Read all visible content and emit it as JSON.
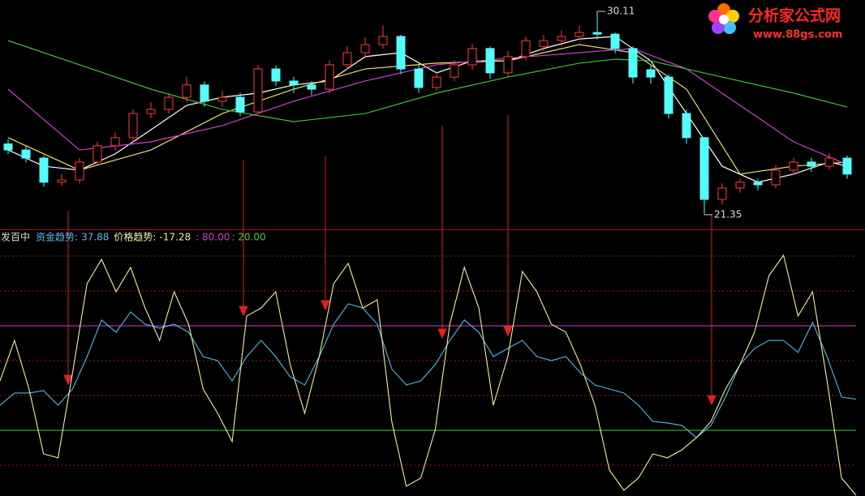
{
  "chart_data": [
    {
      "type": "candlestick",
      "ylim": [
        20.72,
        30.6
      ],
      "up_color": "#ff3c3c",
      "down_color": "#54fcfc",
      "open": [
        24.4,
        24.14,
        23.79,
        22.75,
        22.85,
        23.62,
        24.32,
        24.67,
        25.71,
        25.89,
        26.41,
        26.94,
        26.24,
        26.41,
        25.78,
        27.63,
        27.11,
        26.94,
        26.76,
        27.81,
        28.33,
        28.68,
        29.03,
        27.63,
        26.83,
        27.28,
        27.81,
        28.51,
        27.46,
        28.16,
        28.6,
        28.85,
        29.03,
        29.2,
        29.13,
        28.51,
        27.6,
        27.28,
        25.71,
        24.67,
        22.01,
        22.5,
        22.75,
        22.64,
        23.27,
        23.62,
        23.44,
        23.79
      ],
      "high": [
        24.6,
        24.3,
        23.9,
        23.1,
        23.8,
        24.5,
        24.9,
        25.9,
        26.2,
        26.6,
        27.3,
        27.1,
        26.7,
        26.6,
        27.8,
        27.8,
        27.3,
        27.1,
        28.0,
        28.6,
        29.0,
        29.5,
        29.1,
        27.8,
        27.5,
        28.0,
        28.7,
        28.6,
        28.4,
        29.0,
        29.1,
        29.3,
        29.5,
        30.11,
        29.2,
        28.6,
        27.8,
        27.4,
        25.9,
        24.7,
        22.7,
        22.9,
        22.9,
        23.5,
        23.8,
        23.8,
        24.0,
        23.9
      ],
      "low": [
        23.95,
        23.6,
        22.55,
        22.6,
        22.7,
        23.5,
        24.1,
        24.5,
        25.5,
        25.7,
        26.2,
        26.0,
        26.0,
        25.6,
        25.7,
        26.9,
        26.6,
        26.5,
        26.6,
        27.6,
        28.1,
        28.5,
        27.4,
        26.6,
        26.7,
        27.1,
        27.6,
        27.2,
        27.3,
        28.0,
        28.4,
        28.6,
        28.9,
        28.9,
        28.3,
        27.0,
        27.0,
        25.5,
        24.4,
        21.35,
        21.8,
        22.3,
        22.4,
        22.5,
        23.1,
        23.2,
        23.3,
        22.9
      ],
      "close": [
        24.14,
        23.79,
        22.75,
        22.85,
        23.62,
        24.32,
        24.67,
        25.71,
        25.89,
        26.41,
        26.94,
        26.24,
        26.41,
        25.78,
        27.63,
        27.11,
        26.94,
        26.76,
        27.81,
        28.33,
        28.68,
        29.03,
        27.63,
        26.83,
        27.28,
        27.81,
        28.51,
        27.46,
        28.16,
        28.85,
        28.85,
        29.03,
        29.2,
        29.13,
        28.51,
        27.28,
        27.28,
        25.71,
        24.67,
        22.01,
        22.5,
        22.75,
        22.64,
        23.27,
        23.62,
        23.44,
        23.79,
        23.1
      ],
      "series": [
        {
          "color": "#ffffff",
          "x": [
            0,
            2,
            4,
            6,
            8,
            10,
            12,
            14,
            16,
            18,
            20,
            22,
            24,
            26,
            28,
            30,
            32,
            34,
            36,
            38,
            40,
            42,
            44,
            46,
            47
          ],
          "values": [
            24.14,
            23.44,
            23.27,
            23.97,
            25.01,
            26.06,
            26.41,
            26.59,
            26.94,
            27.11,
            28.16,
            28.33,
            27.46,
            27.98,
            27.98,
            28.51,
            28.92,
            29.03,
            27.98,
            25.71,
            23.44,
            22.75,
            23.1,
            23.62,
            23.44
          ]
        },
        {
          "color": "#e8e070",
          "x": [
            0,
            4,
            8,
            12,
            16,
            20,
            24,
            28,
            32,
            35,
            38,
            41,
            44,
            47
          ],
          "values": [
            24.67,
            23.27,
            24.14,
            25.71,
            26.76,
            27.63,
            27.88,
            27.98,
            28.68,
            28.33,
            26.76,
            23.1,
            23.44,
            23.62
          ]
        },
        {
          "color": "#d040d0",
          "x": [
            0,
            4,
            8,
            12,
            16,
            20,
            24,
            28,
            32,
            35,
            38,
            41,
            44,
            47
          ],
          "values": [
            26.76,
            24.14,
            24.49,
            25.19,
            26.24,
            27.11,
            27.81,
            28.09,
            28.33,
            28.51,
            27.63,
            26.06,
            24.49,
            23.51
          ]
        },
        {
          "color": "#40c040",
          "x": [
            0,
            4,
            8,
            12,
            16,
            20,
            24,
            28,
            32,
            34,
            36,
            40,
            44,
            47
          ],
          "values": [
            28.85,
            27.81,
            26.76,
            25.89,
            25.36,
            25.71,
            26.59,
            27.28,
            27.88,
            28.05,
            27.98,
            27.28,
            26.59,
            25.99
          ]
        }
      ]
    },
    {
      "type": "line",
      "indicator": "发百中",
      "ylim": [
        -17.7,
        134.4
      ],
      "grid": true,
      "grid_levels": [
        0,
        40,
        60,
        100,
        120
      ],
      "levels": [
        {
          "value": 80,
          "label": ": 80.00",
          "color": "#d040d0"
        },
        {
          "value": 20,
          "label": ": 20.00",
          "color": "#40d040"
        }
      ],
      "series": [
        {
          "name": "资金趋势:",
          "color": "#58b8e8",
          "values": [
            34.4,
            41.4,
            41.4,
            42.8,
            34.4,
            43.7,
            62.3,
            83.3,
            76.3,
            87.9,
            80.9,
            78.6,
            80.9,
            76.3,
            62.3,
            60.0,
            48.4,
            62.3,
            71.6,
            62.3,
            50.7,
            46.0,
            62.3,
            80.9,
            92.6,
            90.2,
            80.9,
            55.3,
            46.0,
            48.4,
            57.7,
            71.6,
            83.3,
            76.3,
            62.3,
            67.0,
            71.6,
            62.3,
            60.0,
            62.3,
            53.0,
            46.0,
            43.7,
            41.4,
            34.4,
            25.1,
            24.2,
            22.8,
            15.8,
            22.8,
            39.1,
            57.7,
            67.0,
            71.6,
            71.6,
            64.7,
            81.9,
            62.3,
            39.1,
            37.88
          ]
        },
        {
          "name": "价格趋势:",
          "color": "#f0f0a0",
          "values": [
            48.4,
            71.6,
            43.7,
            6.5,
            4.2,
            53.0,
            104.2,
            118.1,
            99.5,
            113.5,
            90.2,
            71.6,
            99.5,
            80.9,
            43.7,
            29.8,
            13.5,
            85.6,
            90.2,
            99.5,
            57.7,
            29.8,
            62.3,
            104.2,
            115.8,
            90.2,
            94.9,
            25.1,
            -12.1,
            -7.4,
            20.5,
            80.9,
            113.5,
            90.2,
            34.4,
            62.3,
            111.2,
            99.5,
            80.9,
            76.3,
            57.7,
            34.4,
            -2.8,
            -14.4,
            -7.4,
            6.5,
            4.2,
            8.8,
            15.8,
            25.1,
            43.7,
            57.7,
            76.3,
            108.8,
            120.5,
            85.6,
            99.5,
            48.4,
            -7.4,
            -17.28
          ]
        }
      ]
    }
  ],
  "watermark": {
    "title": "分析家公式网",
    "url": "www.88gs.com"
  }
}
